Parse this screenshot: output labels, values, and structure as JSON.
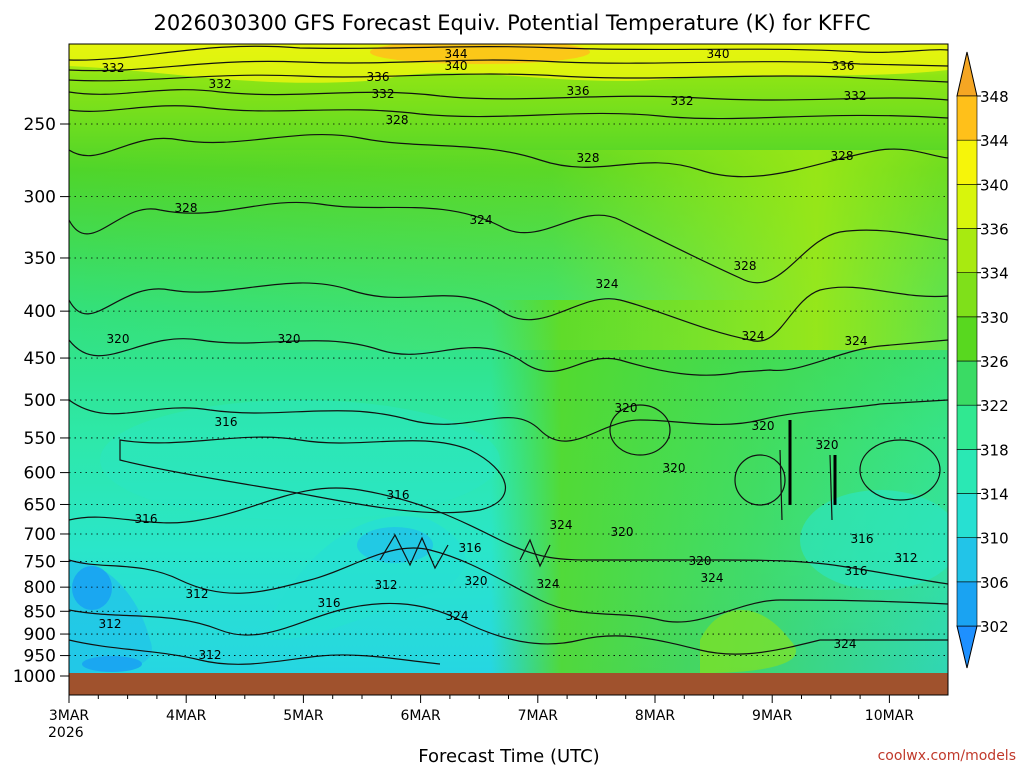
{
  "chart_data": {
    "type": "heatmap",
    "title": "2026030300 GFS Forecast Equiv. Potential Temperature (K) for KFFC",
    "xlabel": "Forecast Time (UTC)",
    "ylabel": "",
    "credit": "coolwx.com/models",
    "x_ticks": [
      "3MAR",
      "4MAR",
      "5MAR",
      "6MAR",
      "7MAR",
      "8MAR",
      "9MAR",
      "10MAR"
    ],
    "x_year_label": "2026",
    "xlim": [
      "3MAR",
      "10MAR 12Z"
    ],
    "y_scale": "log-pressure",
    "y_ticks": [
      250,
      300,
      350,
      400,
      450,
      500,
      550,
      600,
      650,
      700,
      750,
      800,
      850,
      900,
      950,
      1000
    ],
    "ylim": [
      1000,
      200
    ],
    "y_inverted": true,
    "colorbar": {
      "levels": [
        302,
        306,
        310,
        314,
        318,
        322,
        326,
        330,
        334,
        336,
        340,
        344,
        348
      ],
      "labels": [
        "302",
        "306",
        "310",
        "314",
        "318",
        "322",
        "326",
        "330",
        "334",
        "336",
        "340",
        "344",
        "348"
      ],
      "colors": [
        "#1aa3f2",
        "#22c4e8",
        "#27e0d2",
        "#2ae8b4",
        "#30e891",
        "#3adb64",
        "#58d81f",
        "#7fe01a",
        "#a8ea10",
        "#d8f50c",
        "#f6f50a",
        "#ffc01a"
      ],
      "extend": "both"
    },
    "contour_labels": [
      "344",
      "340",
      "340",
      "336",
      "336",
      "336",
      "332",
      "332",
      "332",
      "332",
      "332",
      "328",
      "328",
      "328",
      "328",
      "328",
      "324",
      "324",
      "324",
      "324",
      "324",
      "324",
      "324",
      "324",
      "324",
      "320",
      "320",
      "320",
      "320",
      "320",
      "320",
      "320",
      "320",
      "320",
      "316",
      "316",
      "316",
      "316",
      "316",
      "316",
      "316",
      "312",
      "312",
      "312",
      "312",
      "312"
    ],
    "ground_color": "#a0522d",
    "grid": "dotted horizontal at pressure ticks"
  }
}
